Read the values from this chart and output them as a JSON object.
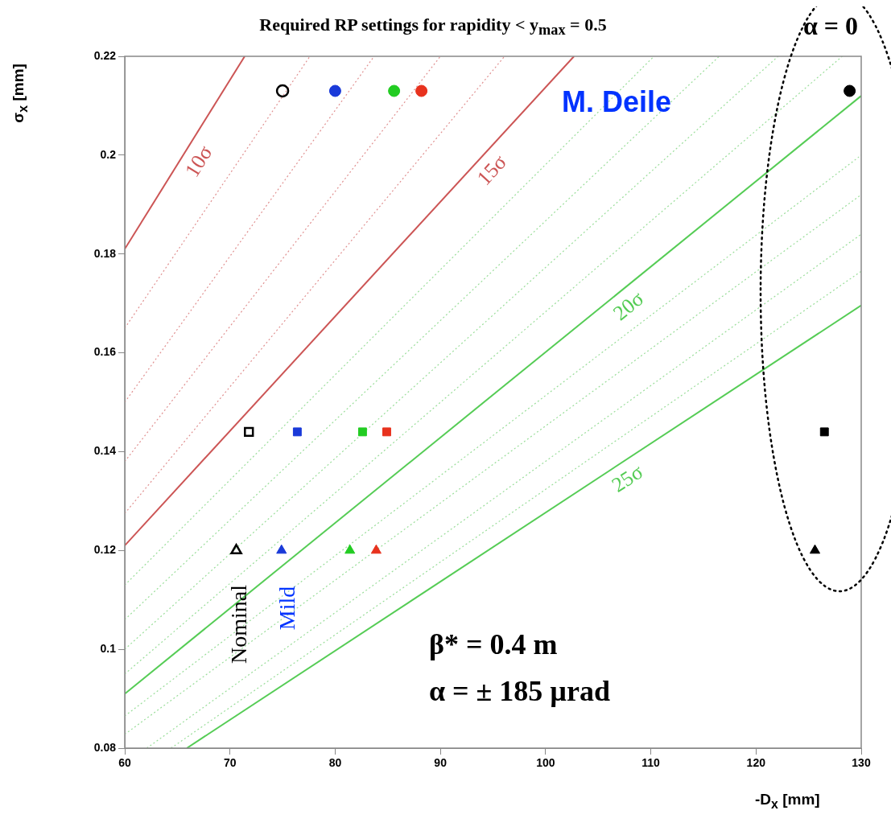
{
  "chart_data": {
    "type": "scatter",
    "title": "Required RP settings for rapidity <  y$_{max}$ = 0.5",
    "xlabel": "-D$_{x}$ [mm]",
    "ylabel": "σ$_{x}$ [mm]",
    "xlim": [
      60,
      130
    ],
    "ylim": [
      0.08,
      0.22
    ],
    "xticks": [
      60,
      70,
      80,
      90,
      100,
      110,
      120,
      130
    ],
    "yticks": [
      0.08,
      0.1,
      0.12,
      0.14,
      0.16,
      0.18,
      0.2,
      0.22
    ],
    "grid": false,
    "legend": false,
    "annotations": [
      "α = 0",
      "M. Deile",
      "β* = 0.4 m",
      "α = ± 185 µrad",
      "Nominal",
      "Mild"
    ],
    "series": [
      {
        "name": "10σ",
        "type": "line",
        "line_style": "solid",
        "color": "#cc5555",
        "x": [
          60,
          71.4
        ],
        "values": [
          0.181,
          0.22
        ]
      },
      {
        "type": "line",
        "line_style": "dotted",
        "color": "#e09090",
        "x": [
          60,
          77.6
        ],
        "values": [
          0.165,
          0.22
        ]
      },
      {
        "type": "line",
        "line_style": "dotted",
        "color": "#e09090",
        "x": [
          60,
          83.7
        ],
        "values": [
          0.15,
          0.22
        ]
      },
      {
        "type": "line",
        "line_style": "dotted",
        "color": "#e09090",
        "x": [
          60,
          90
        ],
        "values": [
          0.138,
          0.22
        ]
      },
      {
        "type": "line",
        "line_style": "dotted",
        "color": "#e09090",
        "x": [
          60,
          96.1
        ],
        "values": [
          0.1275,
          0.22
        ]
      },
      {
        "name": "15σ",
        "type": "line",
        "line_style": "solid",
        "color": "#cc5555",
        "x": [
          60,
          102.7
        ],
        "values": [
          0.121,
          0.22
        ]
      },
      {
        "type": "line",
        "line_style": "dotted",
        "color": "#99dd99",
        "x": [
          60,
          110.3
        ],
        "values": [
          0.113,
          0.22
        ]
      },
      {
        "type": "line",
        "line_style": "dotted",
        "color": "#99dd99",
        "x": [
          60,
          116.5
        ],
        "values": [
          0.106,
          0.22
        ]
      },
      {
        "type": "line",
        "line_style": "dotted",
        "color": "#99dd99",
        "x": [
          60,
          122.1
        ],
        "values": [
          0.1,
          0.22
        ]
      },
      {
        "type": "line",
        "line_style": "dotted",
        "color": "#99dd99",
        "x": [
          60,
          128.2
        ],
        "values": [
          0.095,
          0.22
        ]
      },
      {
        "name": "20σ",
        "type": "line",
        "line_style": "solid",
        "color": "#55cc55",
        "x": [
          60,
          130
        ],
        "values": [
          0.091,
          0.212
        ]
      },
      {
        "type": "line",
        "line_style": "dotted",
        "color": "#99dd99",
        "x": [
          60,
          130
        ],
        "values": [
          0.0865,
          0.2
        ]
      },
      {
        "type": "line",
        "line_style": "dotted",
        "color": "#99dd99",
        "x": [
          60,
          130
        ],
        "values": [
          0.0828,
          0.192
        ]
      },
      {
        "type": "line",
        "line_style": "dotted",
        "color": "#99dd99",
        "x": [
          62.1,
          130
        ],
        "values": [
          0.08,
          0.184
        ]
      },
      {
        "type": "line",
        "line_style": "dotted",
        "color": "#99dd99",
        "x": [
          64.4,
          130
        ],
        "values": [
          0.08,
          0.1765
        ]
      },
      {
        "name": "25σ",
        "type": "line",
        "line_style": "solid",
        "color": "#55cc55",
        "x": [
          65.9,
          130
        ],
        "values": [
          0.08,
          0.1696
        ]
      },
      {
        "marker": "circle",
        "colors": [
          "#1a3ad9",
          "#22cc22",
          "#e8321e",
          "#000000"
        ],
        "x": [
          80,
          85.6,
          88.2,
          128.9
        ],
        "values": [
          0.213,
          0.213,
          0.213,
          0.213
        ]
      },
      {
        "marker": "circle",
        "color": "#000000",
        "x": [
          75
        ],
        "values": [
          0.213
        ]
      },
      {
        "marker": "square",
        "colors": [
          "#1a3ad9",
          "#22cc22",
          "#e8321e",
          "#000000"
        ],
        "x": [
          76.4,
          82.6,
          84.9,
          126.5
        ],
        "values": [
          0.144,
          0.144,
          0.144,
          0.144
        ]
      },
      {
        "marker": "square",
        "color": "#000000",
        "x": [
          71.8
        ],
        "values": [
          0.144
        ]
      },
      {
        "marker": "triangle",
        "colors": [
          "#1a3ad9",
          "#22cc22",
          "#e8321e",
          "#000000"
        ],
        "x": [
          74.9,
          81.4,
          83.9,
          125.6
        ],
        "values": [
          0.12,
          0.12,
          0.12,
          0.12
        ]
      },
      {
        "marker": "triangle",
        "color": "#000000",
        "x": [
          70.6
        ],
        "values": [
          0.12
        ]
      }
    ]
  }
}
